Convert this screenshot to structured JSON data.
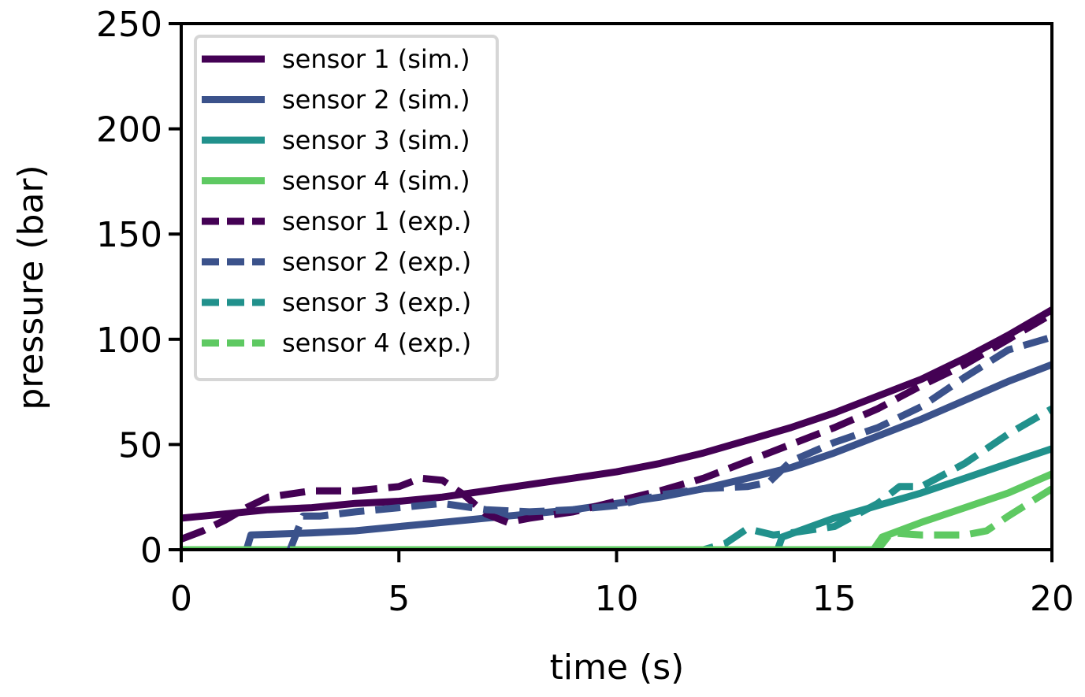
{
  "chart_data": {
    "type": "line",
    "xlabel": "time (s)",
    "ylabel": "pressure (bar)",
    "xlim": [
      0,
      20
    ],
    "ylim": [
      0,
      250
    ],
    "xticks": [
      0,
      5,
      10,
      15,
      20
    ],
    "yticks": [
      0,
      50,
      100,
      150,
      200,
      250
    ],
    "grid": false,
    "legend_placement": "upper-left",
    "series": [
      {
        "name": "sensor 1 (sim.)",
        "color": "#440154",
        "style": "solid",
        "x": [
          0,
          1,
          2,
          3,
          4,
          5,
          6,
          7,
          8,
          9,
          10,
          11,
          12,
          13,
          14,
          15,
          16,
          17,
          18,
          19,
          20
        ],
        "y": [
          15,
          17,
          19,
          20,
          22,
          23,
          25,
          28,
          31,
          34,
          37,
          41,
          46,
          52,
          58,
          65,
          73,
          81,
          91,
          102,
          114
        ]
      },
      {
        "name": "sensor 2 (sim.)",
        "color": "#3b528b",
        "style": "solid",
        "x": [
          0,
          1.5,
          1.6,
          3,
          4,
          5,
          6,
          7,
          8,
          9,
          10,
          11,
          12,
          13,
          14,
          15,
          16,
          17,
          18,
          19,
          20
        ],
        "y": [
          0,
          0,
          7,
          8,
          9,
          11,
          13,
          15,
          17,
          19,
          22,
          25,
          29,
          34,
          39,
          46,
          54,
          62,
          71,
          80,
          88
        ]
      },
      {
        "name": "sensor 3 (sim.)",
        "color": "#21918c",
        "style": "solid",
        "x": [
          0,
          13.7,
          13.8,
          15,
          16,
          17,
          18,
          19,
          20
        ],
        "y": [
          0,
          0,
          6,
          15,
          21,
          27,
          34,
          41,
          48
        ]
      },
      {
        "name": "sensor 4 (sim.)",
        "color": "#5ec962",
        "style": "solid",
        "x": [
          0,
          15.9,
          16.1,
          17,
          18,
          19,
          20
        ],
        "y": [
          0,
          0,
          6,
          13,
          20,
          27,
          36
        ]
      },
      {
        "name": "sensor 1 (exp.)",
        "color": "#440154",
        "style": "dashed",
        "x": [
          0,
          0.5,
          1,
          1.5,
          2,
          3,
          4,
          5,
          5.5,
          6,
          6.5,
          7,
          7.5,
          8,
          9,
          10,
          11,
          12,
          13,
          14,
          15,
          16,
          17,
          18,
          19,
          20
        ],
        "y": [
          5,
          9,
          14,
          20,
          25,
          28,
          28,
          30,
          34,
          33,
          26,
          17,
          13,
          15,
          18,
          23,
          28,
          34,
          42,
          50,
          58,
          67,
          78,
          88,
          100,
          112
        ]
      },
      {
        "name": "sensor 2 (exp.)",
        "color": "#3b528b",
        "style": "dashed",
        "x": [
          0,
          2.5,
          2.8,
          3.2,
          4,
          5,
          6,
          7,
          8,
          9,
          10,
          11,
          12,
          13,
          13.5,
          14,
          15,
          16,
          17,
          18,
          19,
          20
        ],
        "y": [
          0,
          0,
          16,
          16,
          18,
          20,
          22,
          19,
          18,
          19,
          21,
          26,
          29,
          30,
          32,
          42,
          51,
          58,
          68,
          82,
          95,
          101
        ]
      },
      {
        "name": "sensor 3 (exp.)",
        "color": "#21918c",
        "style": "dashed",
        "x": [
          0,
          12,
          12.5,
          13,
          13.6,
          14,
          15,
          16,
          16.5,
          17,
          18,
          19,
          20
        ],
        "y": [
          0,
          0,
          3,
          10,
          7,
          8,
          11,
          22,
          30,
          30,
          41,
          55,
          67
        ]
      },
      {
        "name": "sensor 4 (exp.)",
        "color": "#5ec962",
        "style": "dashed",
        "x": [
          0,
          16,
          16.3,
          17,
          18,
          18.5,
          19,
          20
        ],
        "y": [
          0,
          0,
          8,
          7,
          7,
          9,
          16,
          29
        ]
      }
    ]
  }
}
